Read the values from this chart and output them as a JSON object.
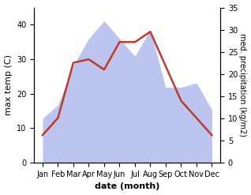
{
  "months": [
    "Jan",
    "Feb",
    "Mar",
    "Apr",
    "May",
    "Jun",
    "Jul",
    "Aug",
    "Sep",
    "Oct",
    "Nov",
    "Dec"
  ],
  "temperature": [
    8,
    13,
    29,
    30,
    27,
    35,
    35,
    38,
    28,
    18,
    13,
    8
  ],
  "precipitation": [
    10,
    13,
    22,
    28,
    32,
    28,
    24,
    30,
    17,
    17,
    18,
    12
  ],
  "temp_color": "#c0392b",
  "precip_fill_color": "#bcc5f0",
  "ylabel_left": "max temp (C)",
  "ylabel_right": "med. precipitation (kg/m2)",
  "xlabel": "date (month)",
  "ylim_left": [
    0,
    45
  ],
  "ylim_right": [
    0,
    35
  ],
  "yticks_left": [
    0,
    10,
    20,
    30,
    40
  ],
  "yticks_right": [
    0,
    5,
    10,
    15,
    20,
    25,
    30,
    35
  ],
  "bg_color": "#ffffff"
}
